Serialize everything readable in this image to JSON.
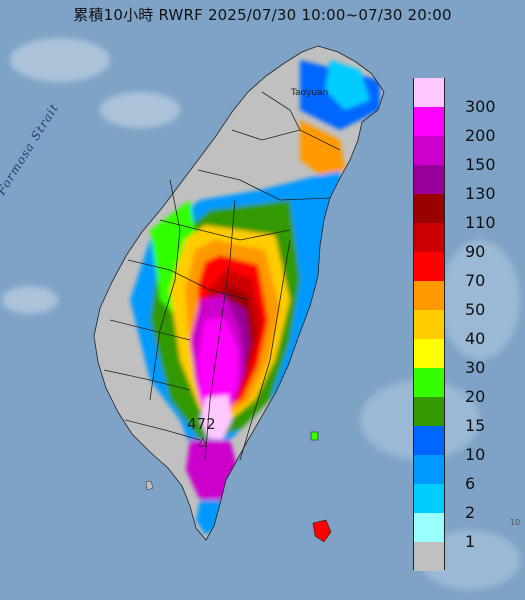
{
  "title": "累積10小時 RWRF 2025/07/30 10:00~07/30 20:00",
  "labels": {
    "strait": "Formosa Strait",
    "city": "Taoyuan",
    "max_value": "472",
    "max_marker": "△",
    "edge_tick": "10"
  },
  "legend": [
    {
      "label": "300",
      "color": "#ffc8ff"
    },
    {
      "label": "200",
      "color": "#ff00ff"
    },
    {
      "label": "150",
      "color": "#cc00cc"
    },
    {
      "label": "130",
      "color": "#990099"
    },
    {
      "label": "110",
      "color": "#990000"
    },
    {
      "label": "90",
      "color": "#cc0000"
    },
    {
      "label": "70",
      "color": "#ff0000"
    },
    {
      "label": "50",
      "color": "#ff9900"
    },
    {
      "label": "40",
      "color": "#ffcc00"
    },
    {
      "label": "30",
      "color": "#ffff00"
    },
    {
      "label": "20",
      "color": "#33ff00"
    },
    {
      "label": "15",
      "color": "#339900"
    },
    {
      "label": "10",
      "color": "#0066ff"
    },
    {
      "label": "6",
      "color": "#0099ff"
    },
    {
      "label": "2",
      "color": "#00ccff"
    },
    {
      "label": "1",
      "color": "#99ffff"
    },
    {
      "label": "",
      "color": "#c0c0c0"
    }
  ]
}
